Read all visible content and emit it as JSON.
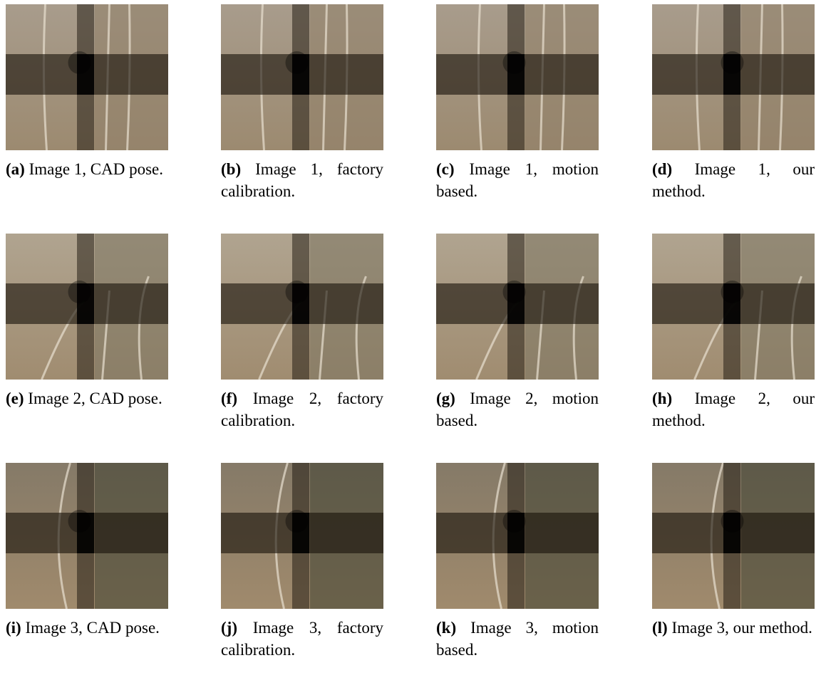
{
  "figures": [
    {
      "label": "(a)",
      "caption": "Image 1, CAD pose."
    },
    {
      "label": "(b)",
      "caption": "Image 1, factory calibration."
    },
    {
      "label": "(c)",
      "caption": "Image 1, motion based."
    },
    {
      "label": "(d)",
      "caption": "Image 1, our method."
    },
    {
      "label": "(e)",
      "caption": "Image 2, CAD pose."
    },
    {
      "label": "(f)",
      "caption": "Image 2, factory calibration."
    },
    {
      "label": "(g)",
      "caption": "Image 2, motion based."
    },
    {
      "label": "(h)",
      "caption": "Image 2, our method."
    },
    {
      "label": "(i)",
      "caption": "Image 3, CAD pose."
    },
    {
      "label": "(j)",
      "caption": "Image 3, factory calibration."
    },
    {
      "label": "(k)",
      "caption": "Image 3, motion based."
    },
    {
      "label": "(l)",
      "caption": "Image 3, our method."
    }
  ]
}
